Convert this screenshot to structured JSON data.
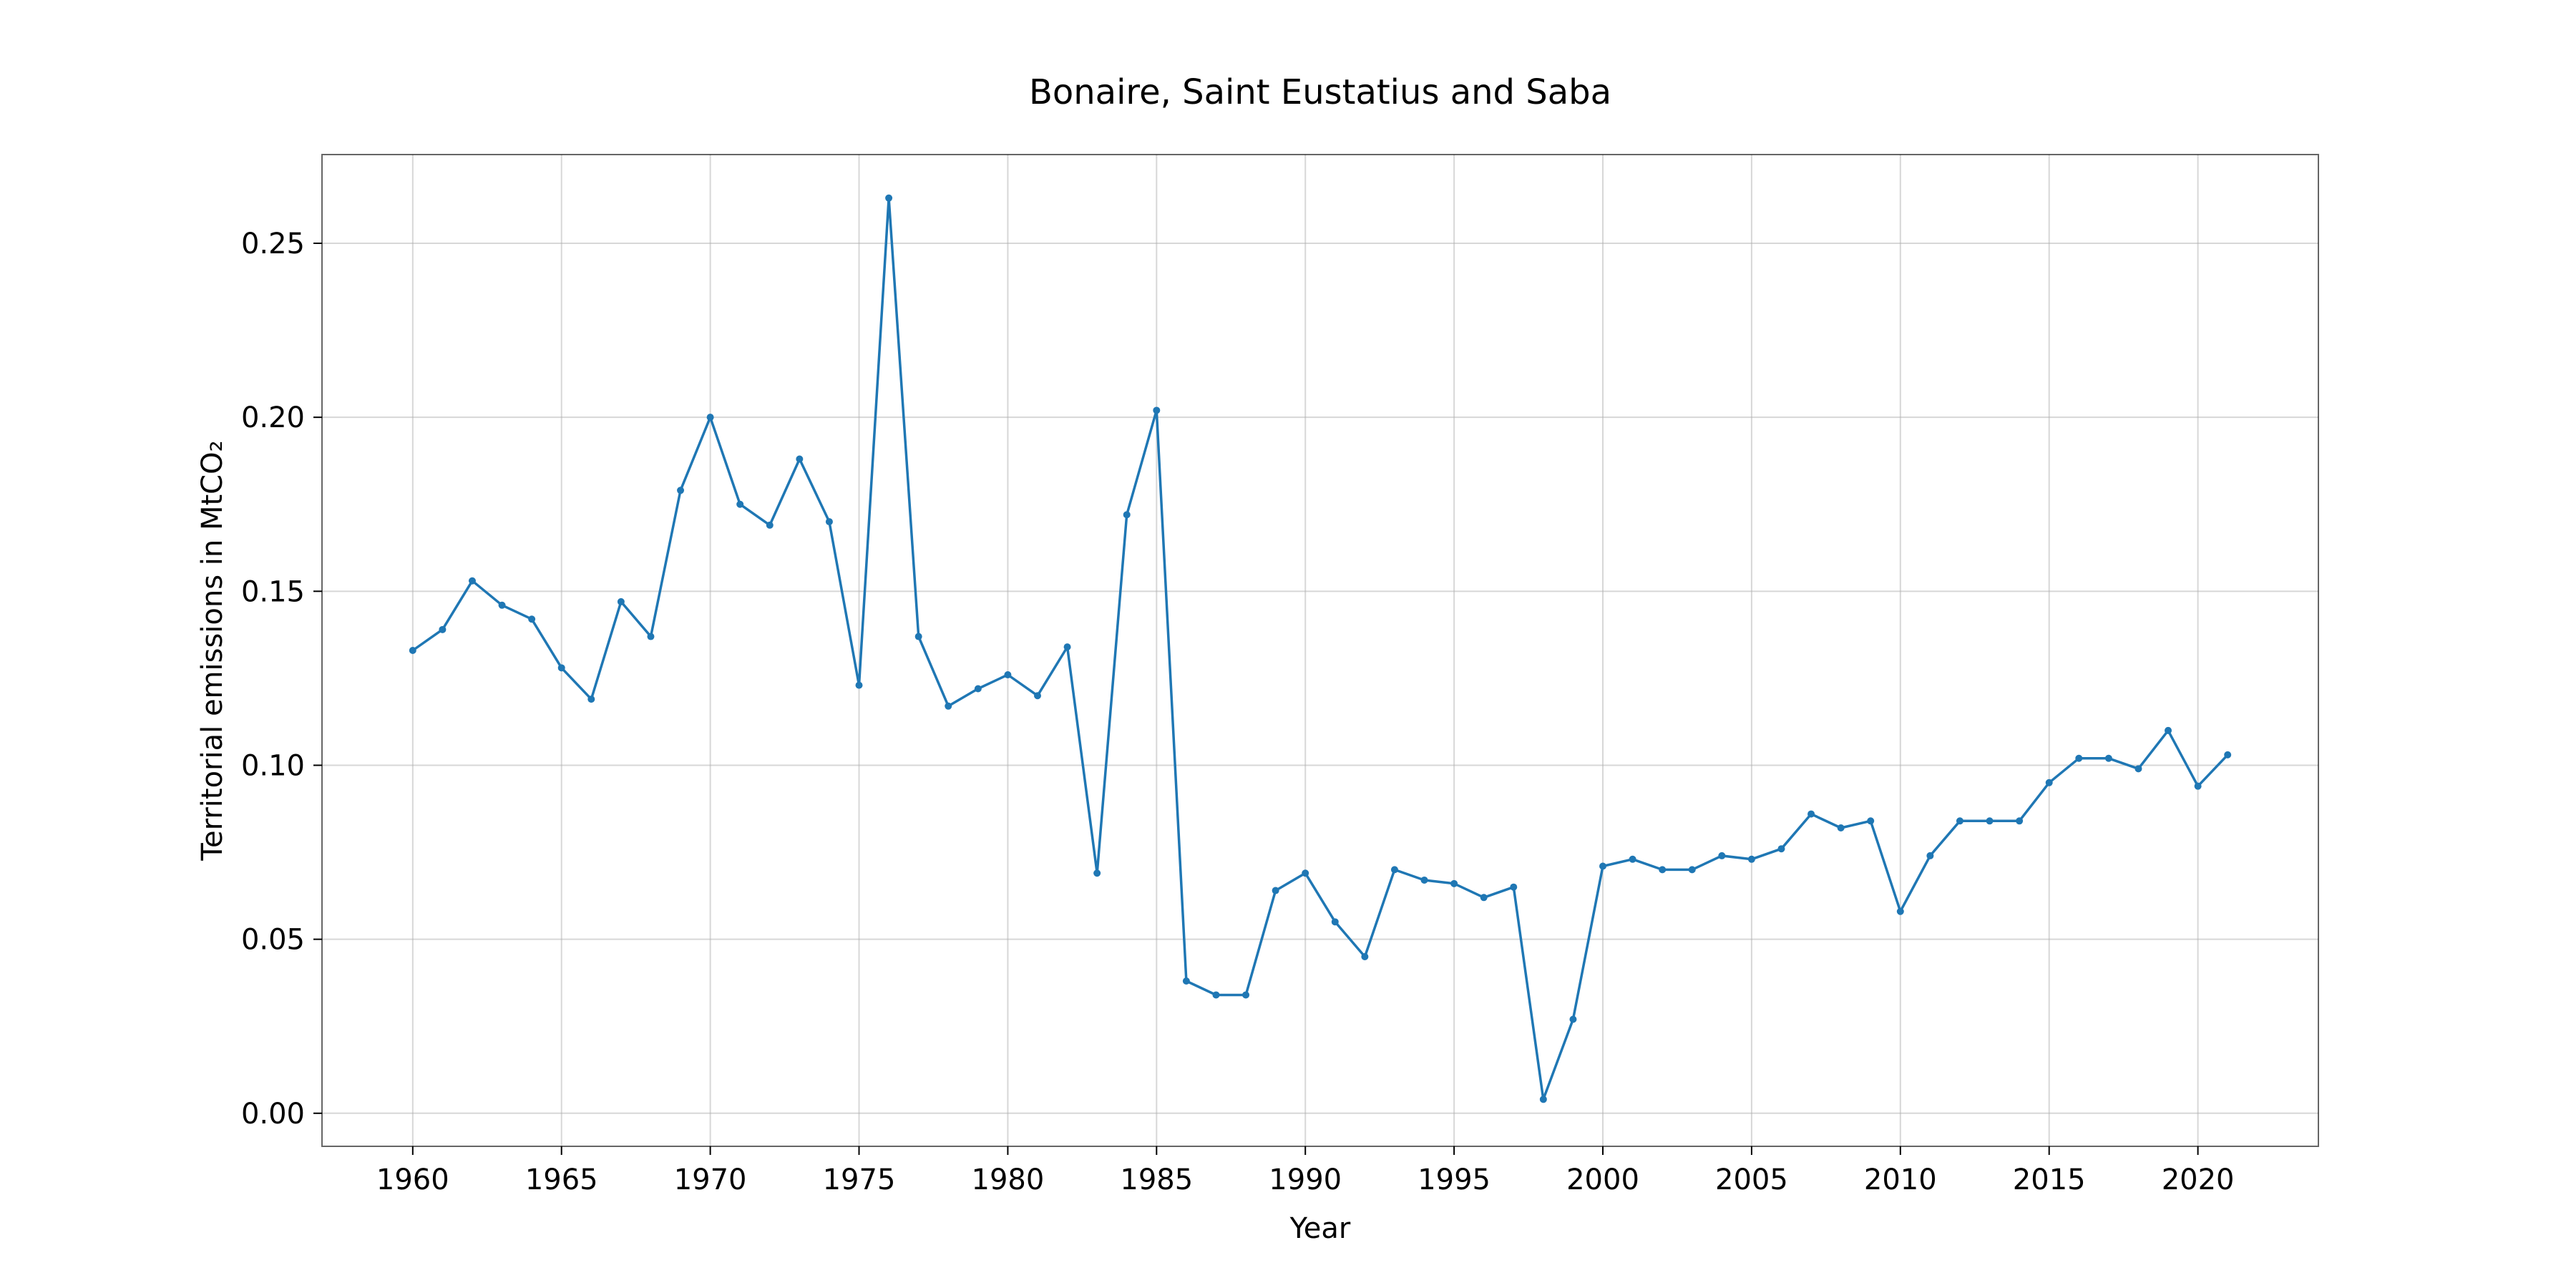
{
  "chart_data": {
    "type": "line",
    "title": "Bonaire, Saint Eustatius and Saba",
    "xlabel": "Year",
    "ylabel": "Territorial emissions in MtCO₂",
    "xlim": [
      1956.95,
      2024.05
    ],
    "ylim": [
      -0.0095,
      0.2755
    ],
    "x_ticks": [
      1960,
      1965,
      1970,
      1975,
      1980,
      1985,
      1990,
      1995,
      2000,
      2005,
      2010,
      2015,
      2020
    ],
    "x_tick_labels": [
      "1960",
      "1965",
      "1970",
      "1975",
      "1980",
      "1985",
      "1990",
      "1995",
      "2000",
      "2005",
      "2010",
      "2015",
      "2020"
    ],
    "y_ticks": [
      0.0,
      0.05,
      0.1,
      0.15,
      0.2,
      0.25
    ],
    "y_tick_labels": [
      "0.00",
      "0.05",
      "0.10",
      "0.15",
      "0.20",
      "0.25"
    ],
    "grid": true,
    "line_color": "#1f77b4",
    "series": [
      {
        "x": [
          1960,
          1961,
          1962,
          1963,
          1964,
          1965,
          1966,
          1967,
          1968,
          1969,
          1970,
          1971,
          1972,
          1973,
          1974,
          1975,
          1976,
          1977,
          1978,
          1979,
          1980,
          1981,
          1982,
          1983,
          1984,
          1985,
          1986,
          1987,
          1988,
          1989,
          1990,
          1991,
          1992,
          1993,
          1994,
          1995,
          1996,
          1997,
          1998,
          1999,
          2000,
          2001,
          2002,
          2003,
          2004,
          2005,
          2006,
          2007,
          2008,
          2009,
          2010,
          2011,
          2012,
          2013,
          2014,
          2015,
          2016,
          2017,
          2018,
          2019,
          2020,
          2021
        ],
        "values": [
          0.133,
          0.139,
          0.153,
          0.146,
          0.142,
          0.128,
          0.119,
          0.147,
          0.137,
          0.179,
          0.2,
          0.175,
          0.169,
          0.188,
          0.17,
          0.123,
          0.263,
          0.137,
          0.117,
          0.122,
          0.126,
          0.12,
          0.134,
          0.069,
          0.172,
          0.202,
          0.038,
          0.034,
          0.034,
          0.064,
          0.069,
          0.055,
          0.045,
          0.07,
          0.067,
          0.066,
          0.062,
          0.065,
          0.004,
          0.027,
          0.071,
          0.073,
          0.07,
          0.07,
          0.074,
          0.073,
          0.076,
          0.086,
          0.082,
          0.084,
          0.058,
          0.074,
          0.084,
          0.084,
          0.084,
          0.095,
          0.102,
          0.102,
          0.099,
          0.11,
          0.094,
          0.103
        ]
      }
    ]
  }
}
